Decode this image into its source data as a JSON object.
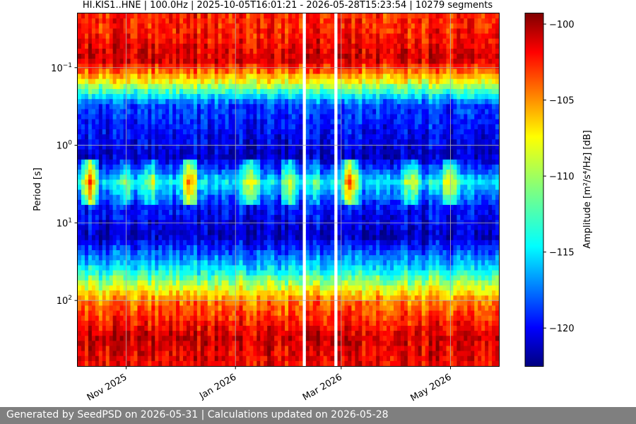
{
  "chart_data": {
    "type": "heatmap",
    "title": "HI.KIS1..HNE | 100.0Hz | 2025-10-05T16:01:21 - 2026-05-28T15:23:54 | 10279 segments",
    "xlabel": "",
    "ylabel": "Period [s]",
    "colorbar_label": "Amplitude [m²/s⁴/Hz] [dB]",
    "colormap": "jet",
    "y_scale": "log",
    "y_inverted": true,
    "grid": true,
    "xlim": [
      "2025-10-05",
      "2026-05-28"
    ],
    "ylim_period_s": [
      0.02,
      700
    ],
    "clim_db": [
      -122.5,
      -99.3
    ],
    "x_ticks": [
      {
        "date": "2025-11-01",
        "label": "Nov 2025"
      },
      {
        "date": "2026-01-01",
        "label": "Jan 2026"
      },
      {
        "date": "2026-03-01",
        "label": "Mar 2026"
      },
      {
        "date": "2026-05-01",
        "label": "May 2026"
      }
    ],
    "y_ticks": [
      {
        "value": 0.1,
        "base": "10",
        "exp": "−1"
      },
      {
        "value": 1,
        "base": "10",
        "exp": "0"
      },
      {
        "value": 10,
        "base": "10",
        "exp": "1"
      },
      {
        "value": 100,
        "base": "10",
        "exp": "2"
      }
    ],
    "colorbar_ticks": [
      {
        "value": -100,
        "label": "−100"
      },
      {
        "value": -105,
        "label": "−105"
      },
      {
        "value": -110,
        "label": "−110"
      },
      {
        "value": -115,
        "label": "−115"
      },
      {
        "value": -120,
        "label": "−120"
      }
    ],
    "data_gaps": [
      {
        "start": "2026-02-07",
        "end": "2026-02-09"
      },
      {
        "start": "2026-02-26",
        "end": "2026-02-27"
      }
    ],
    "approx_psd_profile_db": [
      {
        "period_s": 0.03,
        "db": -103
      },
      {
        "period_s": 0.08,
        "db": -101
      },
      {
        "period_s": 0.15,
        "db": -108
      },
      {
        "period_s": 0.3,
        "db": -118
      },
      {
        "period_s": 1.5,
        "db": -121
      },
      {
        "period_s": 3,
        "db": -114
      },
      {
        "period_s": 6,
        "db": -119
      },
      {
        "period_s": 15,
        "db": -121
      },
      {
        "period_s": 40,
        "db": -114
      },
      {
        "period_s": 100,
        "db": -105
      },
      {
        "period_s": 300,
        "db": -101
      },
      {
        "period_s": 600,
        "db": -102
      }
    ]
  },
  "footer": {
    "text": "Generated by SeedPSD on 2026-05-31 | Calculations updated on 2026-05-28"
  }
}
